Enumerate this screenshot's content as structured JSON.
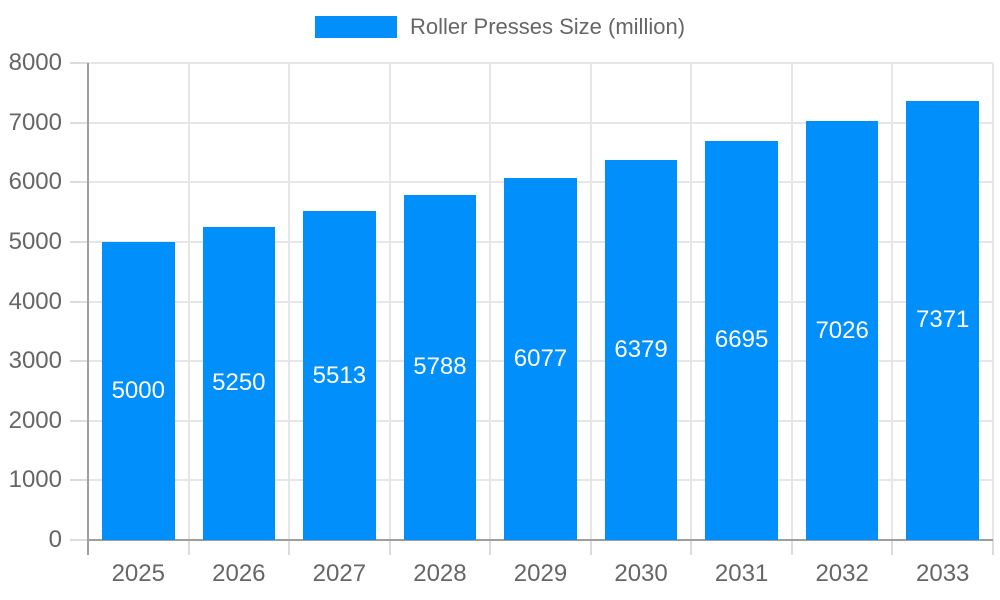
{
  "chart_data": {
    "type": "bar",
    "title": "",
    "categories": [
      "2025",
      "2026",
      "2027",
      "2028",
      "2029",
      "2030",
      "2031",
      "2032",
      "2033"
    ],
    "series": [
      {
        "name": "Roller Presses Size (million)",
        "values": [
          5000,
          5250,
          5513,
          5788,
          6077,
          6379,
          6695,
          7026,
          7371
        ]
      }
    ],
    "data_labels": [
      "5000",
      "5250",
      "5513",
      "5788",
      "6077",
      "6379",
      "6695",
      "7026",
      "7371"
    ],
    "xlabel": "",
    "ylabel": "",
    "ylim": [
      0,
      8000
    ],
    "ytick_step": 1000,
    "ytick_labels": [
      "0",
      "1000",
      "2000",
      "3000",
      "4000",
      "5000",
      "6000",
      "7000",
      "8000"
    ],
    "grid": true,
    "legend_position": "top"
  },
  "legend": {
    "label": "Roller Presses Size (million)"
  },
  "colors": {
    "bar": "#008FFB",
    "legend_text": "#666666",
    "axis_text": "#666666",
    "gridline": "#e6e6e6",
    "tick": "#dcdcdc",
    "axis_line": "#9e9e9e",
    "data_label": "#ffffff",
    "background": "#ffffff"
  }
}
